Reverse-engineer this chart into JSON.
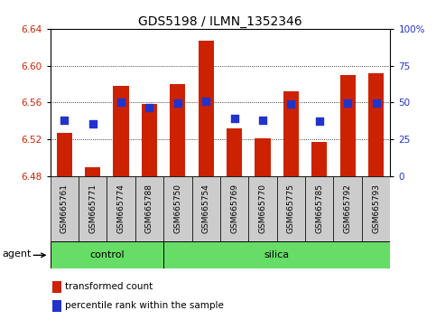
{
  "title": "GDS5198 / ILMN_1352346",
  "samples": [
    "GSM665761",
    "GSM665771",
    "GSM665774",
    "GSM665788",
    "GSM665750",
    "GSM665754",
    "GSM665769",
    "GSM665770",
    "GSM665775",
    "GSM665785",
    "GSM665792",
    "GSM665793"
  ],
  "n_control": 4,
  "n_silica": 8,
  "bar_values": [
    6.527,
    6.49,
    6.578,
    6.558,
    6.58,
    6.627,
    6.532,
    6.521,
    6.572,
    6.517,
    6.59,
    6.592
  ],
  "bar_base": 6.48,
  "blue_values": [
    6.541,
    6.537,
    6.56,
    6.554,
    6.559,
    6.561,
    6.543,
    6.541,
    6.558,
    6.54,
    6.559,
    6.559
  ],
  "ylim": [
    6.48,
    6.64
  ],
  "yticks_left": [
    6.48,
    6.52,
    6.56,
    6.6,
    6.64
  ],
  "yticks_right": [
    0,
    25,
    50,
    75,
    100
  ],
  "ytick_labels_right": [
    "0",
    "25",
    "50",
    "75",
    "100%"
  ],
  "bar_color": "#cc2200",
  "blue_color": "#2233cc",
  "bar_width": 0.55,
  "blue_size": 40,
  "green_color": "#66dd66",
  "gray_color": "#cccccc",
  "agent_label": "agent",
  "control_label": "control",
  "silica_label": "silica",
  "legend_red": "transformed count",
  "legend_blue": "percentile rank within the sample",
  "title_fontsize": 10,
  "tick_fontsize": 7.5,
  "sample_fontsize": 6.5,
  "legend_fontsize": 7.5,
  "agent_fontsize": 8,
  "axis_color_left": "#cc2200",
  "axis_color_right": "#2233cc",
  "background_color": "#ffffff",
  "grid_color": "#000000",
  "grid_levels": [
    6.52,
    6.56,
    6.6
  ]
}
